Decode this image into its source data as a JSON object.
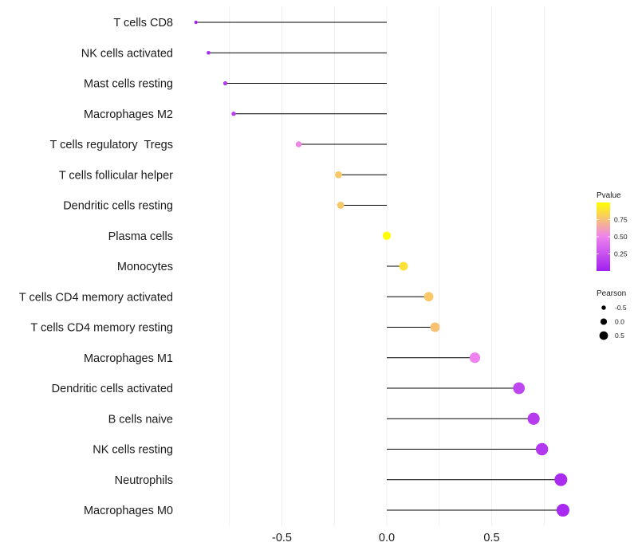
{
  "chart_data": {
    "type": "lollipop",
    "categories": [
      "T cells CD8",
      "NK cells activated",
      "Mast cells resting",
      "Macrophages M2",
      "T cells regulatory  Tregs",
      "T cells follicular helper",
      "Dendritic cells resting",
      "Plasma cells",
      "Monocytes",
      "T cells CD4 memory activated",
      "T cells CD4 memory resting",
      "Macrophages M1",
      "Dendritic cells activated",
      "B cells naive",
      "NK cells resting",
      "Neutrophils",
      "Macrophages M0"
    ],
    "pearson": [
      -0.91,
      -0.85,
      -0.77,
      -0.73,
      -0.42,
      -0.23,
      -0.22,
      0.0,
      0.08,
      0.2,
      0.23,
      0.42,
      0.63,
      0.7,
      0.74,
      0.83,
      0.84
    ],
    "pvalue": [
      0.02,
      0.05,
      0.12,
      0.15,
      0.52,
      0.78,
      0.78,
      0.99,
      0.88,
      0.78,
      0.76,
      0.5,
      0.2,
      0.14,
      0.12,
      0.06,
      0.05
    ],
    "xlabel": "",
    "ylabel": "",
    "xlim": [
      -0.96,
      0.9
    ],
    "x_ticks": [
      -0.5,
      0.0,
      0.5
    ],
    "x_tick_labels": [
      "-0.5",
      "0.0",
      "0.5"
    ],
    "grid": true,
    "legend": {
      "color": {
        "title": "Pvalue",
        "range": [
          0.0,
          1.0
        ],
        "ticks": [
          0.25,
          0.5,
          0.75
        ],
        "tick_labels": [
          "0.25",
          "0.50",
          "0.75"
        ],
        "low_color": "#a020f0",
        "mid_color": "#ee82ee",
        "high_color": "#ffff00"
      },
      "size": {
        "title": "Pearson",
        "values": [
          -0.5,
          0.0,
          0.5
        ],
        "labels": [
          "-0.5",
          "0.0",
          "0.5"
        ]
      },
      "position": "right"
    },
    "segment_color": "#000000",
    "grid_color": "#ebebeb"
  }
}
